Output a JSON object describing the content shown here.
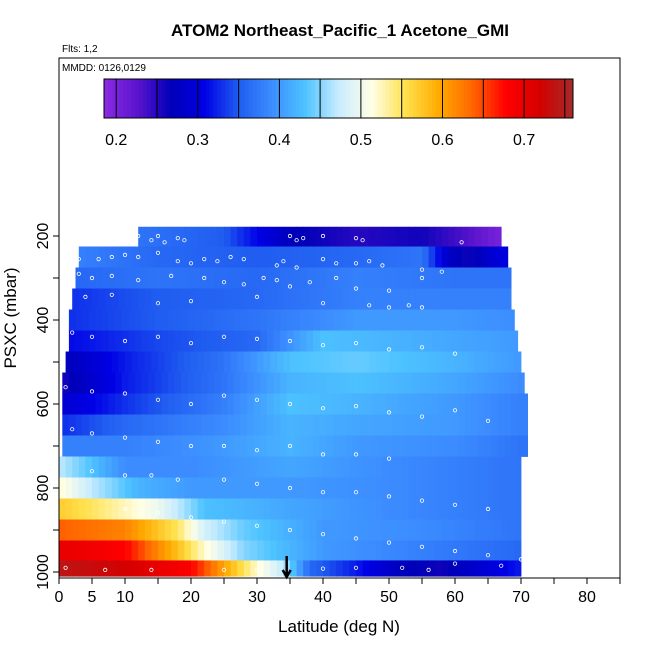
{
  "chart_data": {
    "type": "heatmap",
    "title": "ATOM2 Northeast_Pacific_1 Acetone_GMI",
    "info_lines": [
      "Flts: 1,2",
      "MMDD: 0126,0129"
    ],
    "xlabel": "Latitude (deg N)",
    "ylabel": "PSXC (mbar)",
    "xlim": [
      0,
      85
    ],
    "ylim": [
      1000,
      80
    ],
    "y_reversed": true,
    "x_ticks": [
      0,
      5,
      10,
      20,
      30,
      40,
      50,
      60,
      70,
      80
    ],
    "y_ticks": [
      200,
      400,
      600,
      800,
      1000
    ],
    "grid": false,
    "colorbar": {
      "placement": "top",
      "range": [
        0.185,
        0.76
      ],
      "ticks": [
        0.2,
        0.3,
        0.4,
        0.5,
        0.6,
        0.7
      ],
      "colors": [
        "#8a2be2",
        "#5a14cc",
        "#0000b8",
        "#0000e6",
        "#1f5cf0",
        "#3c8cff",
        "#4dc3ff",
        "#c8ecff",
        "#ffffe6",
        "#ffe14d",
        "#ffaa00",
        "#ff6600",
        "#ff0000",
        "#d40000",
        "#a52a2a"
      ]
    },
    "flight_end_marker_lat": 34.5,
    "layers": [
      {
        "p": 200,
        "lat": [
          12,
          25,
          35,
          45,
          55,
          62,
          67
        ],
        "v": [
          0.37,
          0.35,
          0.27,
          0.25,
          0.26,
          0.23,
          0.2
        ]
      },
      {
        "p": 250,
        "lat": [
          3,
          15,
          30,
          45,
          55,
          59,
          62,
          67
        ],
        "v": [
          0.38,
          0.36,
          0.35,
          0.36,
          0.37,
          0.28,
          0.26,
          0.3
        ]
      },
      {
        "p": 300,
        "lat": [
          3,
          15,
          30,
          45,
          60,
          68
        ],
        "v": [
          0.36,
          0.37,
          0.36,
          0.38,
          0.37,
          0.37
        ]
      },
      {
        "p": 350,
        "lat": [
          2,
          15,
          30,
          45,
          60,
          69
        ],
        "v": [
          0.33,
          0.35,
          0.36,
          0.38,
          0.38,
          0.38
        ]
      },
      {
        "p": 400,
        "lat": [
          2,
          15,
          30,
          45,
          60,
          70
        ],
        "v": [
          0.33,
          0.35,
          0.37,
          0.4,
          0.4,
          0.39
        ]
      },
      {
        "p": 450,
        "lat": [
          1,
          15,
          30,
          40,
          50,
          60,
          70
        ],
        "v": [
          0.31,
          0.34,
          0.36,
          0.43,
          0.42,
          0.41,
          0.4
        ]
      },
      {
        "p": 500,
        "lat": [
          1,
          10,
          25,
          35,
          45,
          60,
          70
        ],
        "v": [
          0.27,
          0.32,
          0.37,
          0.43,
          0.44,
          0.42,
          0.4
        ]
      },
      {
        "p": 550,
        "lat": [
          1,
          10,
          25,
          35,
          45,
          60,
          70
        ],
        "v": [
          0.26,
          0.32,
          0.37,
          0.42,
          0.43,
          0.41,
          0.39
        ]
      },
      {
        "p": 600,
        "lat": [
          1,
          10,
          25,
          35,
          45,
          60,
          70
        ],
        "v": [
          0.29,
          0.33,
          0.38,
          0.43,
          0.42,
          0.4,
          0.38
        ]
      },
      {
        "p": 650,
        "lat": [
          1,
          10,
          25,
          35,
          45,
          60,
          70
        ],
        "v": [
          0.33,
          0.36,
          0.39,
          0.42,
          0.41,
          0.4,
          0.38
        ]
      },
      {
        "p": 700,
        "lat": [
          1,
          10,
          25,
          35,
          45,
          60,
          70
        ],
        "v": [
          0.38,
          0.38,
          0.4,
          0.42,
          0.4,
          0.39,
          0.37
        ]
      },
      {
        "p": 750,
        "lat": [
          0,
          5,
          10,
          20,
          35,
          50,
          70
        ],
        "v": [
          0.47,
          0.43,
          0.39,
          0.39,
          0.41,
          0.39,
          0.37
        ]
      },
      {
        "p": 800,
        "lat": [
          0,
          5,
          12,
          20,
          35,
          50,
          70
        ],
        "v": [
          0.52,
          0.47,
          0.42,
          0.4,
          0.4,
          0.39,
          0.37
        ]
      },
      {
        "p": 850,
        "lat": [
          0,
          5,
          15,
          22,
          35,
          50,
          70
        ],
        "v": [
          0.57,
          0.55,
          0.5,
          0.43,
          0.41,
          0.39,
          0.37
        ]
      },
      {
        "p": 900,
        "lat": [
          0,
          10,
          18,
          22,
          28,
          40,
          55,
          70
        ],
        "v": [
          0.64,
          0.62,
          0.55,
          0.48,
          0.44,
          0.4,
          0.39,
          0.37
        ]
      },
      {
        "p": 950,
        "lat": [
          0,
          10,
          18,
          22,
          28,
          40,
          55,
          70
        ],
        "v": [
          0.7,
          0.68,
          0.58,
          0.52,
          0.45,
          0.4,
          0.38,
          0.36
        ]
      },
      {
        "p": 995,
        "lat": [
          0,
          10,
          20,
          25,
          30,
          34,
          38,
          45,
          52,
          58,
          70
        ],
        "v": [
          0.74,
          0.72,
          0.68,
          0.6,
          0.52,
          0.47,
          0.36,
          0.32,
          0.27,
          0.26,
          0.32
        ]
      }
    ],
    "layer_extents": [
      [
        12,
        67
      ],
      [
        3,
        68
      ],
      [
        2.5,
        68.5
      ],
      [
        2,
        68.5
      ],
      [
        1.5,
        69
      ],
      [
        1.5,
        69.5
      ],
      [
        1,
        70
      ],
      [
        0.5,
        70.5
      ],
      [
        0.5,
        71
      ],
      [
        0.5,
        71
      ],
      [
        0.5,
        71
      ],
      [
        0,
        70
      ],
      [
        0,
        70
      ],
      [
        0,
        70
      ],
      [
        0,
        70
      ],
      [
        0,
        70
      ],
      [
        0,
        70
      ]
    ],
    "observation_points": [
      [
        12,
        200
      ],
      [
        14,
        210
      ],
      [
        15,
        200
      ],
      [
        16,
        215
      ],
      [
        18,
        205
      ],
      [
        19,
        210
      ],
      [
        35,
        200
      ],
      [
        36,
        210
      ],
      [
        37,
        205
      ],
      [
        40,
        200
      ],
      [
        45,
        205
      ],
      [
        46,
        210
      ],
      [
        61,
        215
      ],
      [
        3,
        255
      ],
      [
        6,
        255
      ],
      [
        8,
        250
      ],
      [
        10,
        245
      ],
      [
        12,
        250
      ],
      [
        15,
        240
      ],
      [
        18,
        260
      ],
      [
        20,
        265
      ],
      [
        22,
        255
      ],
      [
        24,
        260
      ],
      [
        26,
        250
      ],
      [
        28,
        255
      ],
      [
        33,
        270
      ],
      [
        34,
        260
      ],
      [
        36,
        275
      ],
      [
        40,
        255
      ],
      [
        42,
        265
      ],
      [
        45,
        265
      ],
      [
        47,
        260
      ],
      [
        49,
        270
      ],
      [
        55,
        280
      ],
      [
        58,
        285
      ],
      [
        3,
        290
      ],
      [
        5,
        300
      ],
      [
        8,
        295
      ],
      [
        12,
        305
      ],
      [
        17,
        295
      ],
      [
        22,
        300
      ],
      [
        25,
        310
      ],
      [
        28,
        315
      ],
      [
        31,
        300
      ],
      [
        33,
        305
      ],
      [
        35,
        320
      ],
      [
        38,
        310
      ],
      [
        42,
        300
      ],
      [
        45,
        325
      ],
      [
        50,
        330
      ],
      [
        55,
        300
      ],
      [
        4,
        345
      ],
      [
        8,
        340
      ],
      [
        15,
        360
      ],
      [
        20,
        355
      ],
      [
        30,
        345
      ],
      [
        40,
        360
      ],
      [
        47,
        365
      ],
      [
        50,
        370
      ],
      [
        53,
        365
      ],
      [
        55,
        370
      ],
      [
        2,
        430
      ],
      [
        5,
        440
      ],
      [
        10,
        450
      ],
      [
        15,
        440
      ],
      [
        20,
        455
      ],
      [
        25,
        440
      ],
      [
        30,
        445
      ],
      [
        35,
        450
      ],
      [
        40,
        460
      ],
      [
        45,
        455
      ],
      [
        50,
        470
      ],
      [
        55,
        465
      ],
      [
        60,
        480
      ],
      [
        1,
        560
      ],
      [
        5,
        570
      ],
      [
        10,
        575
      ],
      [
        15,
        590
      ],
      [
        20,
        600
      ],
      [
        25,
        580
      ],
      [
        30,
        590
      ],
      [
        35,
        600
      ],
      [
        40,
        610
      ],
      [
        45,
        605
      ],
      [
        50,
        620
      ],
      [
        55,
        630
      ],
      [
        60,
        615
      ],
      [
        65,
        640
      ],
      [
        2,
        660
      ],
      [
        5,
        670
      ],
      [
        10,
        680
      ],
      [
        15,
        690
      ],
      [
        20,
        700
      ],
      [
        25,
        700
      ],
      [
        30,
        710
      ],
      [
        35,
        700
      ],
      [
        40,
        720
      ],
      [
        45,
        720
      ],
      [
        50,
        730
      ],
      [
        5,
        760
      ],
      [
        10,
        770
      ],
      [
        14,
        770
      ],
      [
        18,
        780
      ],
      [
        25,
        780
      ],
      [
        30,
        790
      ],
      [
        35,
        800
      ],
      [
        40,
        810
      ],
      [
        45,
        810
      ],
      [
        50,
        820
      ],
      [
        55,
        830
      ],
      [
        60,
        840
      ],
      [
        65,
        850
      ],
      [
        10,
        850
      ],
      [
        15,
        860
      ],
      [
        20,
        870
      ],
      [
        25,
        880
      ],
      [
        30,
        890
      ],
      [
        35,
        900
      ],
      [
        40,
        910
      ],
      [
        45,
        920
      ],
      [
        50,
        930
      ],
      [
        55,
        940
      ],
      [
        60,
        950
      ],
      [
        65,
        960
      ],
      [
        70,
        970
      ],
      [
        1,
        990
      ],
      [
        7,
        995
      ],
      [
        14,
        995
      ],
      [
        25,
        995
      ],
      [
        30,
        995
      ],
      [
        40,
        992
      ],
      [
        45,
        990
      ],
      [
        52,
        990
      ],
      [
        56,
        995
      ],
      [
        60,
        980
      ],
      [
        67,
        985
      ]
    ]
  }
}
